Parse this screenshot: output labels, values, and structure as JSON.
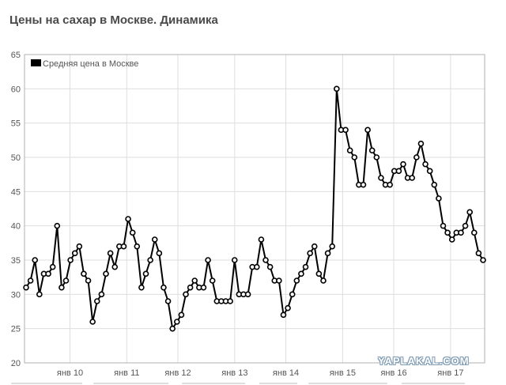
{
  "title": "Цены на сахар в Москве. Динамика",
  "watermark": "YAPLAKAL.COM",
  "chart_data": {
    "type": "line",
    "title": "Цены на сахар в Москве. Динамика",
    "ylim": [
      20,
      65
    ],
    "yticks": [
      20,
      25,
      30,
      35,
      40,
      45,
      50,
      55,
      60,
      65
    ],
    "xlim": [
      0,
      81
    ],
    "xticks": [
      {
        "at": 8,
        "label": "янв 10"
      },
      {
        "at": 18,
        "label": "янв 11"
      },
      {
        "at": 27,
        "label": "янв 12"
      },
      {
        "at": 37,
        "label": "янв 13"
      },
      {
        "at": 46,
        "label": "янв 14"
      },
      {
        "at": 56,
        "label": "янв 15"
      },
      {
        "at": 65,
        "label": "янв 16"
      },
      {
        "at": 75,
        "label": "янв 17"
      }
    ],
    "grid": true,
    "legend_position": "top-left",
    "series": [
      {
        "name": "Средняя цена в Москве",
        "color": "#000000",
        "values": [
          31,
          32,
          35,
          30,
          33,
          33,
          34,
          40,
          31,
          32,
          35,
          36,
          37,
          33,
          32,
          26,
          29,
          30,
          33,
          36,
          34,
          37,
          37,
          41,
          39,
          37,
          31,
          33,
          35,
          38,
          36,
          31,
          29,
          25,
          26,
          27,
          30,
          31,
          32,
          31,
          31,
          35,
          32,
          29,
          29,
          29,
          29,
          35,
          30,
          30,
          30,
          34,
          34,
          38,
          35,
          34,
          32,
          32,
          27,
          28,
          30,
          32,
          33,
          34,
          36,
          37,
          33,
          32,
          36,
          37,
          60,
          54,
          54,
          51,
          50,
          46,
          46,
          54,
          51,
          50,
          47,
          46,
          46,
          48,
          48,
          49,
          47,
          47,
          50,
          52,
          49,
          48,
          46,
          44,
          40,
          39,
          38,
          39,
          39,
          40,
          42,
          39,
          36,
          35
        ]
      }
    ]
  }
}
